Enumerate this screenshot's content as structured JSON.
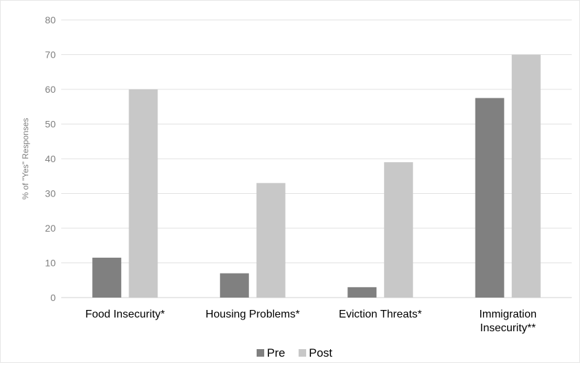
{
  "chart_data": {
    "type": "bar",
    "categories": [
      [
        "Food Insecurity*"
      ],
      [
        "Housing Problems*"
      ],
      [
        "Eviction Threats*"
      ],
      [
        "Immigration",
        "Insecurity**"
      ]
    ],
    "series": [
      {
        "name": "Pre",
        "color": "#808080",
        "values": [
          11.5,
          7,
          3,
          57.5
        ]
      },
      {
        "name": "Post",
        "color": "#c8c8c8",
        "values": [
          60,
          33,
          39,
          70
        ]
      }
    ],
    "ylabel": "% of \"Yes\" Responses",
    "xlabel": "",
    "ylim": [
      0,
      80
    ],
    "yticks": [
      0,
      10,
      20,
      30,
      40,
      50,
      60,
      70,
      80
    ],
    "grid": true,
    "legend": "bottom"
  }
}
